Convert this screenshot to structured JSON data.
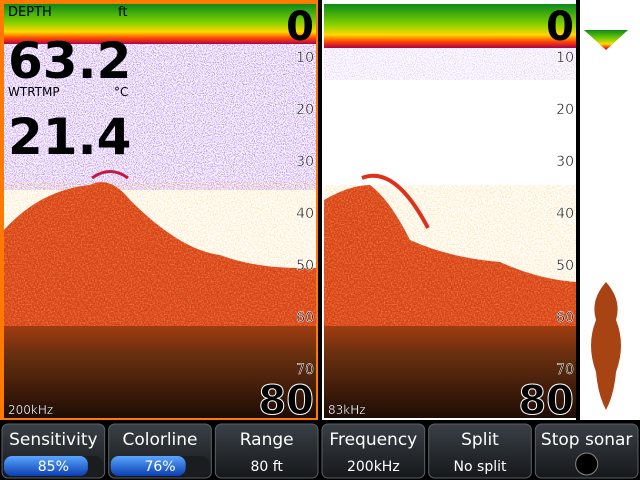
{
  "panels": [
    {
      "depth_label": "DEPTH",
      "depth_unit": "ft",
      "depth": "63.2",
      "temp_label": "WTRTMP",
      "temp_unit": "°C",
      "temp": "21.4",
      "top": 0,
      "bottom": 80,
      "scale": [
        10,
        20,
        30,
        40,
        50,
        60,
        70
      ],
      "frequency": "200kHz"
    },
    {
      "top": 0,
      "bottom": 80,
      "scale": [
        10,
        20,
        30,
        40,
        50,
        60,
        70
      ],
      "frequency": "83kHz"
    }
  ],
  "buttons": [
    {
      "label": "Sensitivity",
      "value": {
        "value": 85,
        "label": "85%"
      }
    },
    {
      "label": "Colorline",
      "value": {
        "value": 76,
        "label": "76%"
      }
    },
    {
      "label": "Range",
      "text": "80 ft"
    },
    {
      "label": "Frequency",
      "text": "200kHz"
    },
    {
      "label": "Split",
      "text": "No split"
    },
    {
      "label": "Stop sonar"
    }
  ]
}
